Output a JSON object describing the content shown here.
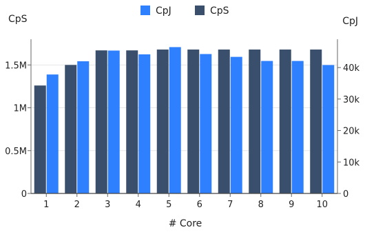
{
  "chart_data": {
    "type": "bar",
    "title": "",
    "xlabel": "# Core",
    "ylabel_left": "CpS",
    "ylabel_right": "CpJ",
    "categories": [
      "1",
      "2",
      "3",
      "4",
      "5",
      "6",
      "7",
      "8",
      "9",
      "10"
    ],
    "series": [
      {
        "name": "CpS",
        "axis": "left",
        "color": "#3a4f6b",
        "values": [
          1260000,
          1500000,
          1670000,
          1670000,
          1680000,
          1680000,
          1680000,
          1680000,
          1680000,
          1680000
        ]
      },
      {
        "name": "CpJ",
        "axis": "right",
        "color": "#2f80ff",
        "values": [
          37800,
          42000,
          45400,
          44200,
          46500,
          44300,
          43400,
          42100,
          42100,
          40800
        ]
      }
    ],
    "ylim_left": [
      0,
      1800000
    ],
    "ylim_right": [
      0,
      49000
    ],
    "yticks_left": [
      {
        "value": 0,
        "label": "0"
      },
      {
        "value": 500000,
        "label": "0.5M"
      },
      {
        "value": 1000000,
        "label": "1M"
      },
      {
        "value": 1500000,
        "label": "1.5M"
      }
    ],
    "yticks_right": [
      {
        "value": 0,
        "label": "0"
      },
      {
        "value": 10000,
        "label": "10k"
      },
      {
        "value": 20000,
        "label": "20k"
      },
      {
        "value": 30000,
        "label": "30k"
      },
      {
        "value": 40000,
        "label": "40k"
      }
    ],
    "legend": {
      "position": "top-center",
      "items": [
        {
          "label": "CpJ",
          "color": "#2f80ff"
        },
        {
          "label": "CpS",
          "color": "#3a4f6b"
        }
      ]
    },
    "grid": true
  }
}
